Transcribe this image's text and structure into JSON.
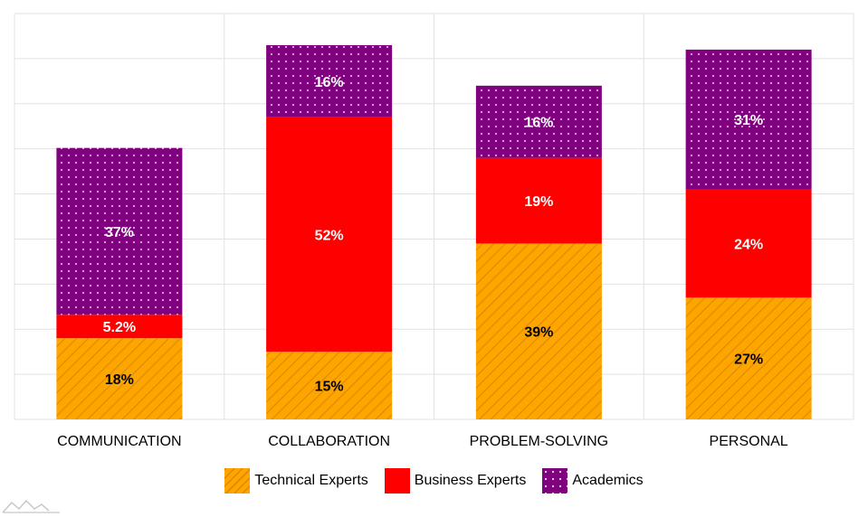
{
  "chart_data": {
    "type": "bar",
    "stacked": true,
    "categories": [
      "COMMUNICATION",
      "COLLABORATION",
      "PROBLEM-SOLVING",
      "PERSONAL"
    ],
    "series": [
      {
        "name": "Technical Experts",
        "values": [
          18,
          15,
          39,
          27
        ],
        "labels": [
          "18%",
          "15%",
          "39%",
          "27%"
        ],
        "color": "#ffa500",
        "pattern": "diagonal-lines",
        "label_color": "#000000"
      },
      {
        "name": "Business Experts",
        "values": [
          5.2,
          52,
          19,
          24
        ],
        "labels": [
          "5.2%",
          "52%",
          "19%",
          "24%"
        ],
        "color": "#ff0000",
        "pattern": "solid",
        "label_color": "#ffffff"
      },
      {
        "name": "Academics",
        "values": [
          37,
          16,
          16,
          31
        ],
        "labels": [
          "37%",
          "16%",
          "16%",
          "31%"
        ],
        "color": "#800080",
        "pattern": "dots",
        "label_color": "#ffffff"
      }
    ],
    "ylim": [
      0,
      90
    ],
    "grid": true,
    "legend": "bottom-center",
    "title": "",
    "xlabel": "",
    "ylabel": ""
  }
}
